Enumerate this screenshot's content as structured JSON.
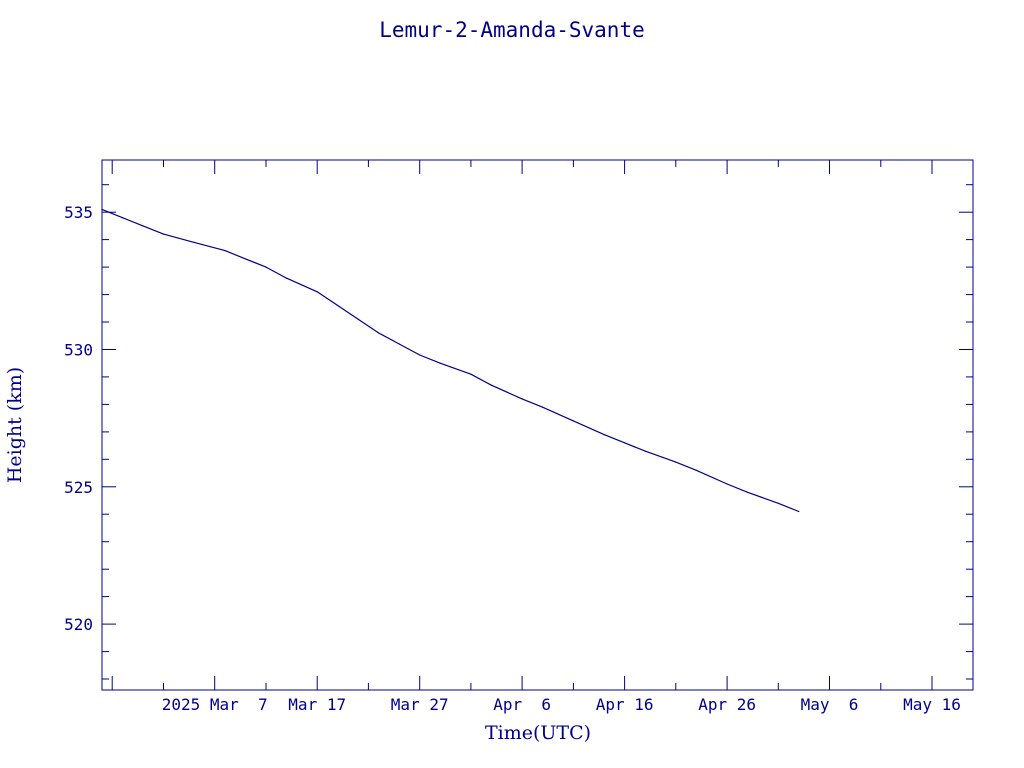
{
  "chart_data": {
    "type": "line",
    "title": "Lemur-2-Amanda-Svante",
    "xlabel": "Time(UTC)",
    "ylabel": "Height (km)",
    "x_tick_labels": [
      "2025 Mar  7",
      "Mar 17",
      "Mar 27",
      "Apr  6",
      "Apr 16",
      "Apr 26",
      "May  6",
      "May 16"
    ],
    "x_ticks": [
      "2025-03-07",
      "2025-03-17",
      "2025-03-27",
      "2025-04-06",
      "2025-04-16",
      "2025-04-26",
      "2025-05-06",
      "2025-05-16"
    ],
    "xlim": [
      "2025-02-24",
      "2025-05-20"
    ],
    "ylim": [
      517.6,
      536.9
    ],
    "y_ticks": [
      520,
      525,
      530,
      535
    ],
    "grid": false,
    "color": "#00008b",
    "series": [
      {
        "points": [
          [
            "2025-02-24",
            535.1
          ],
          [
            "2025-02-26",
            534.8
          ],
          [
            "2025-02-28",
            534.5
          ],
          [
            "2025-03-02",
            534.2
          ],
          [
            "2025-03-05",
            533.9
          ],
          [
            "2025-03-08",
            533.6
          ],
          [
            "2025-03-10",
            533.3
          ],
          [
            "2025-03-12",
            533.0
          ],
          [
            "2025-03-14",
            532.6
          ],
          [
            "2025-03-17",
            532.1
          ],
          [
            "2025-03-19",
            531.6
          ],
          [
            "2025-03-21",
            531.1
          ],
          [
            "2025-03-23",
            530.6
          ],
          [
            "2025-03-25",
            530.2
          ],
          [
            "2025-03-27",
            529.8
          ],
          [
            "2025-03-29",
            529.5
          ],
          [
            "2025-04-01",
            529.1
          ],
          [
            "2025-04-03",
            528.7
          ],
          [
            "2025-04-06",
            528.2
          ],
          [
            "2025-04-08",
            527.9
          ],
          [
            "2025-04-11",
            527.4
          ],
          [
            "2025-04-14",
            526.9
          ],
          [
            "2025-04-16",
            526.6
          ],
          [
            "2025-04-18",
            526.3
          ],
          [
            "2025-04-21",
            525.9
          ],
          [
            "2025-04-23",
            525.6
          ],
          [
            "2025-04-26",
            525.1
          ],
          [
            "2025-04-28",
            524.8
          ],
          [
            "2025-05-01",
            524.4
          ],
          [
            "2025-05-03",
            524.1
          ]
        ]
      }
    ]
  }
}
